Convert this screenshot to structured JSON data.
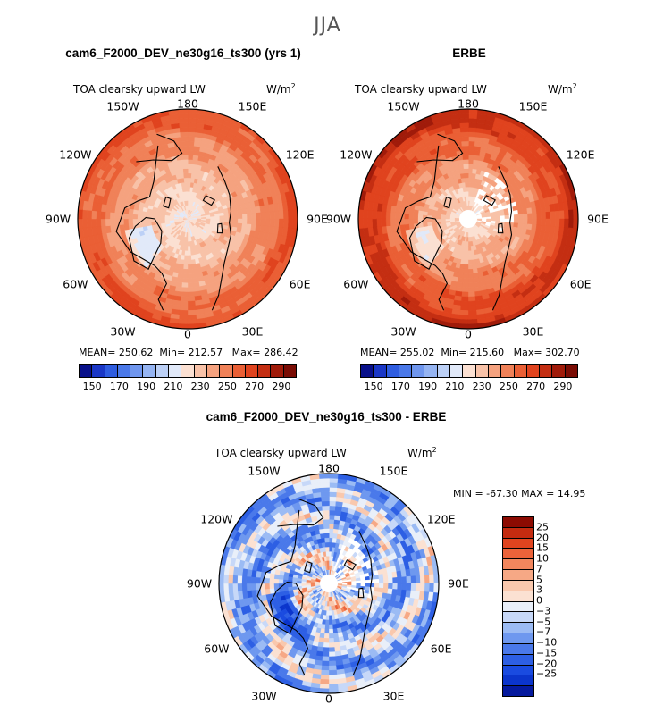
{
  "figure": {
    "season": "JJA"
  },
  "colors": {
    "abs_palette": [
      "#08108a",
      "#1a37c6",
      "#2f5de0",
      "#4a78e8",
      "#6f96ee",
      "#95b4f2",
      "#bcd0f6",
      "#e1e9f9",
      "#fbe0d2",
      "#f8c2a8",
      "#f5a27f",
      "#f08158",
      "#ea5f35",
      "#e0431e",
      "#c42e12",
      "#a01b0a",
      "#7a0c04"
    ],
    "diff_palette": [
      "#051a9e",
      "#0b35cc",
      "#1a4be0",
      "#2d5fe4",
      "#4a79ea",
      "#6e98ef",
      "#9bbbf4",
      "#c7d8f8",
      "#e9eff9",
      "#fbe1d2",
      "#f9c8ad",
      "#f6a885",
      "#f2865d",
      "#ec633a",
      "#e0441f",
      "#c42b10",
      "#8c0b02"
    ],
    "coast": "#000000"
  },
  "chart_data": [
    {
      "type": "polar_contour_map",
      "title": "cam6_F2000_DEV_ne30g16_ts300 (yrs 1)",
      "variable": "TOA clearsky upward LW",
      "units": "W/m",
      "units_sup": "2",
      "lon_labels": [
        "180",
        "150E",
        "120E",
        "90E",
        "60E",
        "30E",
        "0",
        "30W",
        "60W",
        "90W",
        "120W",
        "150W"
      ],
      "stats": {
        "mean_label": "MEAN=",
        "mean": "250.62",
        "min_label": "Min=",
        "min": "212.57",
        "max_label": "Max=",
        "max": "286.42"
      },
      "colorbar": {
        "ticks": [
          "150",
          "170",
          "190",
          "210",
          "230",
          "250",
          "270",
          "290"
        ],
        "range": [
          140,
          300
        ]
      },
      "model": {
        "pole": 223,
        "rise": 47,
        "floor": 200,
        "cap": 286,
        "noise": 9,
        "seed": 3,
        "cut": false
      }
    },
    {
      "type": "polar_contour_map",
      "title": "ERBE",
      "variable": "TOA clearsky upward LW",
      "units": "W/m",
      "units_sup": "2",
      "lon_labels": [
        "180",
        "150E",
        "120E",
        "90E",
        "60E",
        "30E",
        "0",
        "30W",
        "60W",
        "90W",
        "120W",
        "150W"
      ],
      "stats": {
        "mean_label": "MEAN=",
        "mean": "255.02",
        "min_label": "Min=",
        "min": "215.60",
        "max_label": "Max=",
        "max": "302.70"
      },
      "colorbar": {
        "ticks": [
          "150",
          "170",
          "190",
          "210",
          "230",
          "250",
          "270",
          "290"
        ],
        "range": [
          140,
          300
        ]
      },
      "model": {
        "pole": 226,
        "rise": 60,
        "floor": 200,
        "cap": 302,
        "noise": 10,
        "seed": 7,
        "cut": true
      }
    },
    {
      "type": "polar_contour_map",
      "title": "cam6_F2000_DEV_ne30g16_ts300 - ERBE",
      "variable": "TOA clearsky upward LW",
      "units": "W/m",
      "units_sup": "2",
      "lon_labels": [
        "180",
        "150E",
        "120E",
        "90E",
        "60E",
        "30E",
        "0",
        "30W",
        "60W",
        "90W",
        "120W",
        "150W"
      ],
      "stats": {
        "text": "MIN = -67.30 MAX =  14.95"
      },
      "colorbar": {
        "ticks": [
          "25",
          "20",
          "15",
          "10",
          "7",
          "5",
          "3",
          "0",
          "−3",
          "−5",
          "−7",
          "−10",
          "−15",
          "−20",
          "−25"
        ]
      },
      "model": {
        "mode": "diff",
        "seed": 11,
        "cut": true
      }
    }
  ]
}
